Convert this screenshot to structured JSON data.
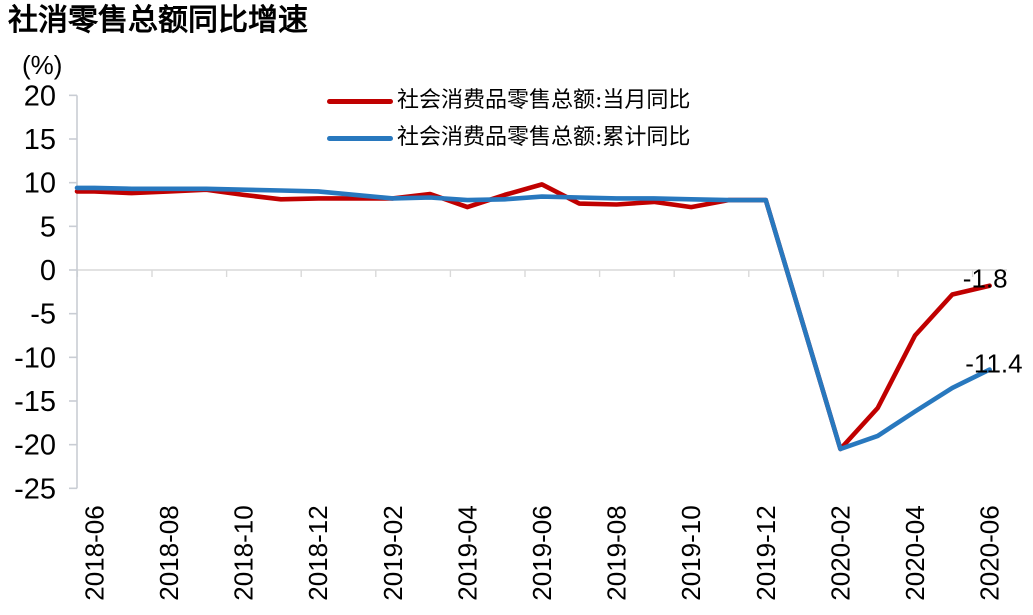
{
  "title": "社消零售总额同比增速",
  "y_axis_unit_label": "(%)",
  "legend": [
    {
      "label": "社会消费品零售总额:当月同比",
      "color": "#C00000"
    },
    {
      "label": "社会消费品零售总额:累计同比",
      "color": "#2878BE"
    }
  ],
  "annotations": [
    {
      "text": "-1.8",
      "series": 0
    },
    {
      "text": "-11.4",
      "series": 1
    }
  ],
  "colors": {
    "monthly_line": "#C00000",
    "cumulative_line": "#2878BE",
    "axis": "#C9CDD4",
    "gridline": "#D9D9D9",
    "text": "#000000"
  },
  "chart_data": {
    "type": "line",
    "x": [
      "2018-06",
      "2018-07",
      "2018-08",
      "2018-09",
      "2018-10",
      "2018-11",
      "2018-12",
      "2019-01",
      "2019-02",
      "2019-03",
      "2019-04",
      "2019-05",
      "2019-06",
      "2019-07",
      "2019-08",
      "2019-09",
      "2019-10",
      "2019-11",
      "2019-12",
      "2020-01",
      "2020-02",
      "2020-03",
      "2020-04",
      "2020-05",
      "2020-06"
    ],
    "x_tick_labels": [
      "2018-06",
      "2018-08",
      "2018-10",
      "2018-12",
      "2019-02",
      "2019-04",
      "2019-06",
      "2019-08",
      "2019-10",
      "2019-12",
      "2020-02",
      "2020-04",
      "2020-06"
    ],
    "series": [
      {
        "name": "社会消费品零售总额:当月同比",
        "color": "#C00000",
        "values": [
          9.0,
          8.8,
          9.0,
          9.2,
          8.6,
          8.1,
          8.2,
          null,
          8.2,
          8.7,
          7.2,
          8.6,
          9.8,
          7.6,
          7.5,
          7.8,
          7.2,
          8.0,
          8.0,
          null,
          -20.5,
          -15.8,
          -7.5,
          -2.8,
          -1.8
        ]
      },
      {
        "name": "社会消费品零售总额:累计同比",
        "color": "#2878BE",
        "values": [
          9.4,
          9.3,
          9.3,
          9.3,
          9.2,
          9.1,
          9.0,
          null,
          8.2,
          8.3,
          8.0,
          8.1,
          8.4,
          8.3,
          8.2,
          8.2,
          8.1,
          8.0,
          8.0,
          null,
          -20.5,
          -19.0,
          -16.2,
          -13.5,
          -11.4
        ]
      }
    ],
    "ylim": [
      -25,
      20
    ],
    "y_ticks": [
      20,
      15,
      10,
      5,
      0,
      -5,
      -10,
      -15,
      -20,
      -25
    ],
    "grid": "zero-line-only",
    "legend_position": "top-center"
  }
}
